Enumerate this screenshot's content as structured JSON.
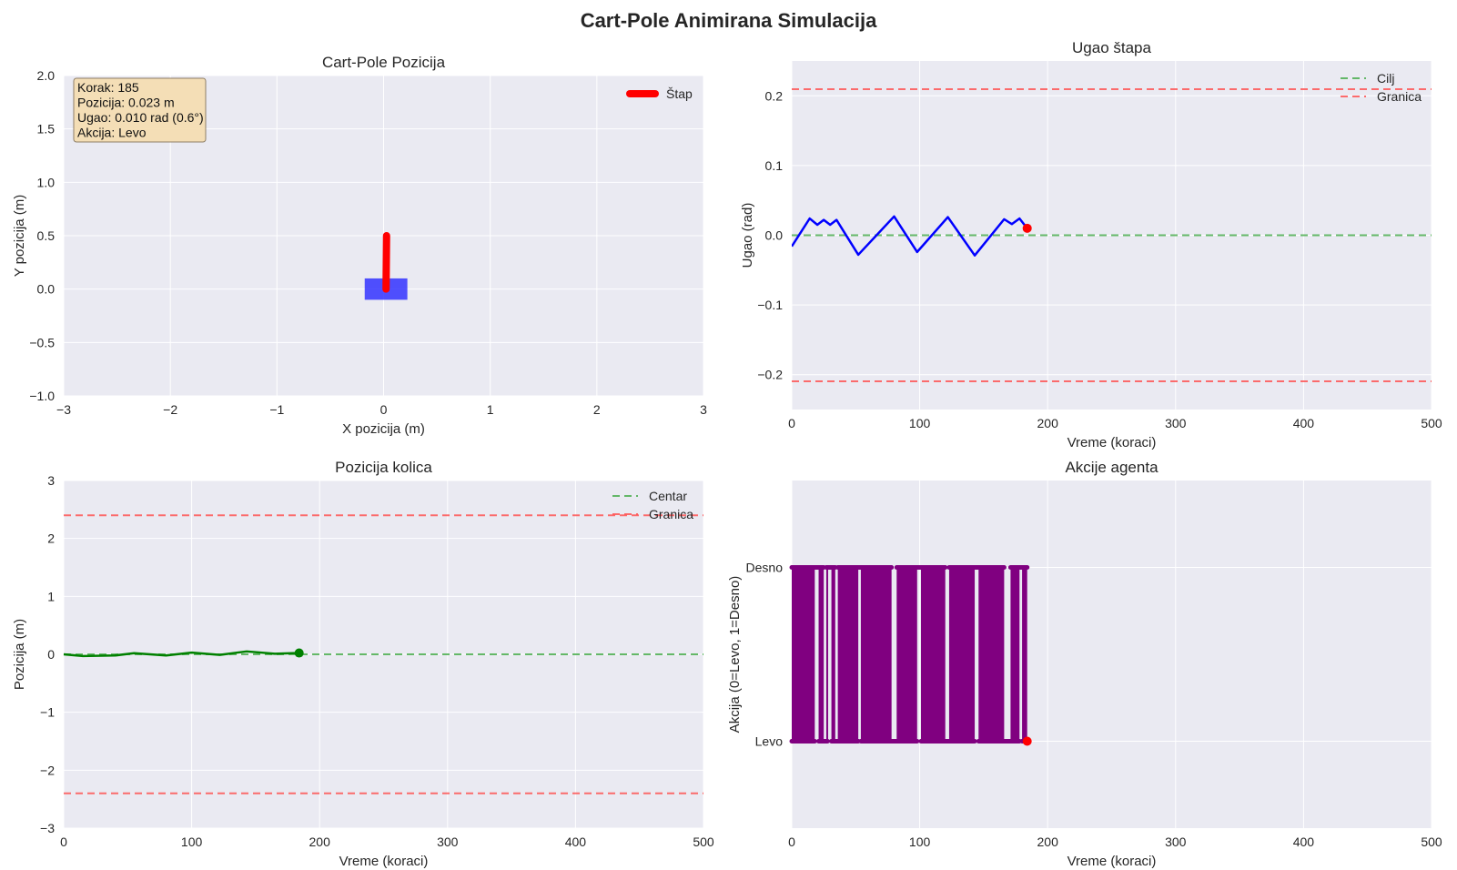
{
  "suptitle": "Cart-Pole Animirana Simulacija",
  "colors": {
    "plot_bg": "#eaeaf2",
    "grid": "#ffffff",
    "cart": "#3333ff",
    "pole": "#ff0000",
    "angle": "#0000ff",
    "position": "#008000",
    "action": "#800080",
    "target": "#4caf50",
    "limit": "#ff5555",
    "marker": "#ff0000"
  },
  "chart_data": [
    {
      "id": "cartpole",
      "type": "scatter",
      "title": "Cart-Pole Pozicija",
      "xlabel": "X pozicija (m)",
      "ylabel": "Y pozicija (m)",
      "xlim": [
        -3,
        3
      ],
      "ylim": [
        -1,
        2
      ],
      "xticks": [
        -3,
        -2,
        -1,
        0,
        1,
        2,
        3
      ],
      "xtick_labels": [
        "−3",
        "−2",
        "−1",
        "0",
        "1",
        "2",
        "3"
      ],
      "yticks": [
        -1.0,
        -0.5,
        0.0,
        0.5,
        1.0,
        1.5,
        2.0
      ],
      "ytick_labels": [
        "−1.0",
        "−0.5",
        "0.0",
        "0.5",
        "1.0",
        "1.5",
        "2.0"
      ],
      "cart": {
        "x_center": 0.023,
        "width": 0.4,
        "y_bottom": -0.1,
        "height": 0.2
      },
      "pole": {
        "x0": 0.023,
        "y0": 0.0,
        "x1": 0.028,
        "y1": 0.5
      },
      "legend": [
        "Štap"
      ],
      "info_lines": [
        "Korak: 185",
        "Pozicija: 0.023 m",
        "Ugao: 0.010 rad (0.6°)",
        "Akcija: Levo"
      ],
      "grid": true
    },
    {
      "id": "angle",
      "type": "line",
      "title": "Ugao štapa",
      "xlabel": "Vreme (koraci)",
      "ylabel": "Ugao (rad)",
      "xlim": [
        0,
        500
      ],
      "ylim": [
        -0.25,
        0.25
      ],
      "xticks": [
        0,
        100,
        200,
        300,
        400,
        500
      ],
      "xtick_labels": [
        "0",
        "100",
        "200",
        "300",
        "400",
        "500"
      ],
      "yticks": [
        -0.2,
        -0.1,
        0.0,
        0.1,
        0.2
      ],
      "ytick_labels": [
        "−0.2",
        "−0.1",
        "0.0",
        "0.1",
        "0.2"
      ],
      "x": [
        0,
        14,
        20,
        25,
        30,
        35,
        52,
        80,
        98,
        122,
        143,
        166,
        172,
        178,
        184
      ],
      "y": [
        -0.016,
        0.024,
        0.015,
        0.022,
        0.015,
        0.022,
        -0.028,
        0.027,
        -0.024,
        0.026,
        -0.029,
        0.023,
        0.016,
        0.024,
        0.01
      ],
      "current": {
        "x": 184,
        "y": 0.01
      },
      "hlines": [
        {
          "y": 0.0,
          "style": "target"
        },
        {
          "y": 0.2095,
          "style": "limit"
        },
        {
          "y": -0.2095,
          "style": "limit"
        }
      ],
      "legend": [
        "Cilj",
        "Granica"
      ],
      "grid": true
    },
    {
      "id": "position",
      "type": "line",
      "title": "Pozicija kolica",
      "xlabel": "Vreme (koraci)",
      "ylabel": "Pozicija (m)",
      "xlim": [
        0,
        500
      ],
      "ylim": [
        -3,
        3
      ],
      "xticks": [
        0,
        100,
        200,
        300,
        400,
        500
      ],
      "xtick_labels": [
        "0",
        "100",
        "200",
        "300",
        "400",
        "500"
      ],
      "yticks": [
        -3,
        -2,
        -1,
        0,
        1,
        2,
        3
      ],
      "ytick_labels": [
        "−3",
        "−2",
        "−1",
        "0",
        "1",
        "2",
        "3"
      ],
      "x": [
        0,
        15,
        40,
        55,
        80,
        100,
        122,
        143,
        165,
        184
      ],
      "y": [
        0.0,
        -0.03,
        -0.02,
        0.02,
        -0.02,
        0.03,
        -0.01,
        0.05,
        0.01,
        0.023
      ],
      "current": {
        "x": 184,
        "y": 0.023
      },
      "hlines": [
        {
          "y": 0.0,
          "style": "target"
        },
        {
          "y": 2.4,
          "style": "limit"
        },
        {
          "y": -2.4,
          "style": "limit"
        }
      ],
      "legend": [
        "Centar",
        "Granica"
      ],
      "grid": true
    },
    {
      "id": "actions",
      "type": "line",
      "title": "Akcije agenta",
      "xlabel": "Vreme (koraci)",
      "ylabel": "Akcija (0=Levo, 1=Desno)",
      "xlim": [
        0,
        500
      ],
      "ylim": [
        -0.5,
        1.5
      ],
      "xticks": [
        0,
        100,
        200,
        300,
        400,
        500
      ],
      "xtick_labels": [
        "0",
        "100",
        "200",
        "300",
        "400",
        "500"
      ],
      "yticks": [
        0,
        1
      ],
      "ytick_labels": [
        "Levo",
        "Desno"
      ],
      "blocks": [
        [
          0,
          18
        ],
        [
          21,
          25
        ],
        [
          27,
          28
        ],
        [
          31,
          34
        ],
        [
          36,
          52
        ],
        [
          54,
          78
        ],
        [
          82,
          98
        ],
        [
          101,
          120
        ],
        [
          123,
          143
        ],
        [
          146,
          166
        ],
        [
          171,
          178
        ],
        [
          180,
          184
        ]
      ],
      "current": {
        "x": 184,
        "y": 0
      },
      "grid": true
    }
  ]
}
